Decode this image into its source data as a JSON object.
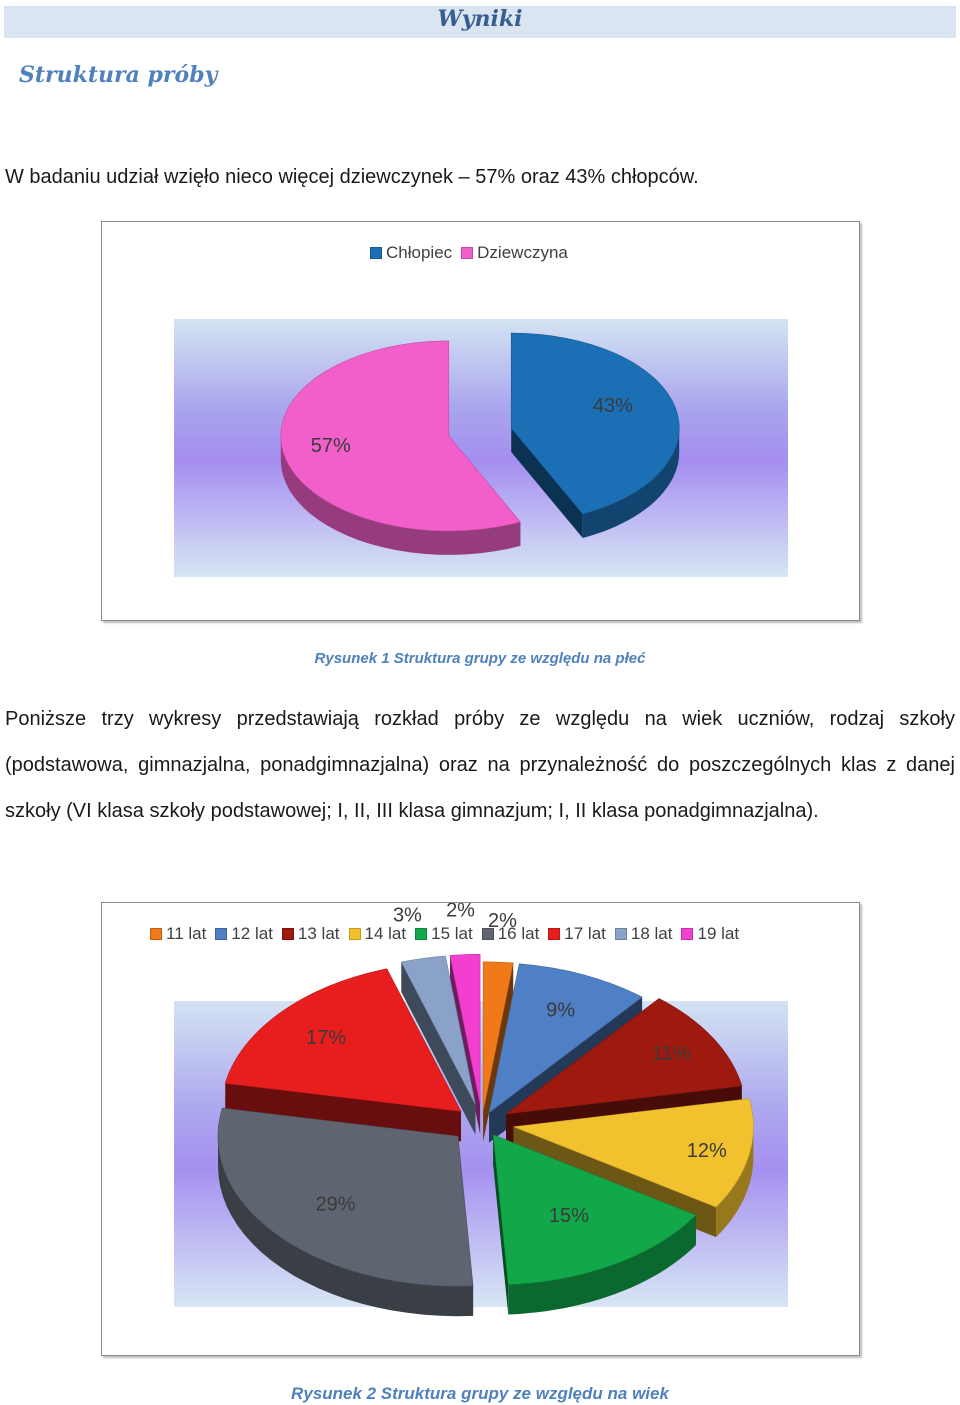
{
  "header": {
    "title": "Wyniki"
  },
  "section_title": "Struktura próby",
  "paragraph1": "W badaniu udział wzięło nieco więcej dziewczynek – 57% oraz 43% chłopców.",
  "figure1": {
    "caption": "Rysunek 1 Struktura grupy ze względu na płeć"
  },
  "paragraph2": "Poniższe trzy wykresy przedstawiają rozkład próby ze względu na wiek uczniów, rodzaj szkoły (podstawowa, gimnazjalna, ponadgimnazjalna) oraz na przynależność do poszczególnych klas z danej szkoły (VI klasa szkoły podstawowej; I, II, III klasa gimnazjum; I, II klasa ponadgimnazjalna).",
  "figure2": {
    "caption": "Rysunek 2 Struktura grupy ze względu na wiek"
  },
  "chart_data": [
    {
      "type": "pie",
      "style": "3d-exploded",
      "legend_position": "top",
      "categories": [
        "Chłopiec",
        "Dziewczyna"
      ],
      "values": [
        43,
        57
      ],
      "data_labels": [
        "43%",
        "57%"
      ],
      "colors": [
        "#1b6fb5",
        "#f25fcb"
      ]
    },
    {
      "type": "pie",
      "style": "3d-exploded",
      "legend_position": "top",
      "categories": [
        "11 lat",
        "12 lat",
        "13 lat",
        "14 lat",
        "15 lat",
        "16 lat",
        "17 lat",
        "18 lat",
        "19 lat"
      ],
      "values": [
        2,
        9,
        11,
        12,
        15,
        29,
        17,
        3,
        2
      ],
      "data_labels": [
        "2%",
        "9%",
        "11%",
        "12%",
        "15%",
        "29%",
        "17%",
        "3%",
        "2%"
      ],
      "colors": [
        "#f07a1a",
        "#4f7fc4",
        "#9e1a0f",
        "#f2c12e",
        "#12a84a",
        "#5e6570",
        "#e81e1e",
        "#8aa2c8",
        "#f23fd0"
      ]
    }
  ]
}
